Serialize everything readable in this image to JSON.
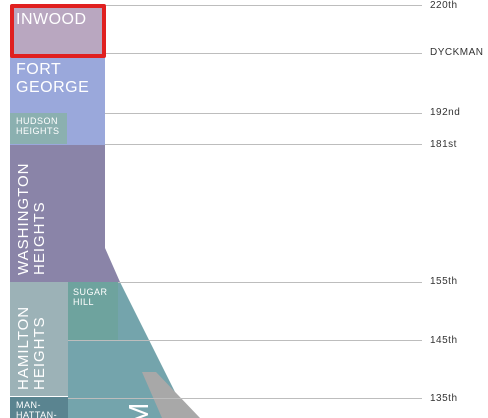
{
  "colors": {
    "inwood": "#b9a7c0",
    "fort_george": "#9aa8db",
    "hudson_heights": "#8bb0b0",
    "washington_heights": "#8a84a8",
    "hamilton_heights": "#9cb2b7",
    "sugar_hill": "#6ea39e",
    "manhattanville": "#5a8490",
    "harlem": "#74a4ac",
    "gray_wedge": "#a8a8a8",
    "highlight": "#e02020",
    "street_line": "#bdbdbd"
  },
  "streets": [
    {
      "name": "220th"
    },
    {
      "name": "DYCKMAN"
    },
    {
      "name": "192nd"
    },
    {
      "name": "181st"
    },
    {
      "name": "155th"
    },
    {
      "name": "145th"
    },
    {
      "name": "135th"
    }
  ],
  "neighborhoods": {
    "inwood": "INWOOD",
    "fort_george": "FORT\nGEORGE",
    "hudson_heights": "HUDSON\nHEIGHTS",
    "washington_heights": "WASHINGTON\nHEIGHTS",
    "sugar_hill": "SUGAR\nHILL",
    "hamilton_heights": "HAMILTON\nHEIGHTS",
    "manhattanville": "MAN-\nHATTAN-",
    "harlem_partial": "M"
  },
  "selection": {
    "highlighted": "INWOOD"
  }
}
